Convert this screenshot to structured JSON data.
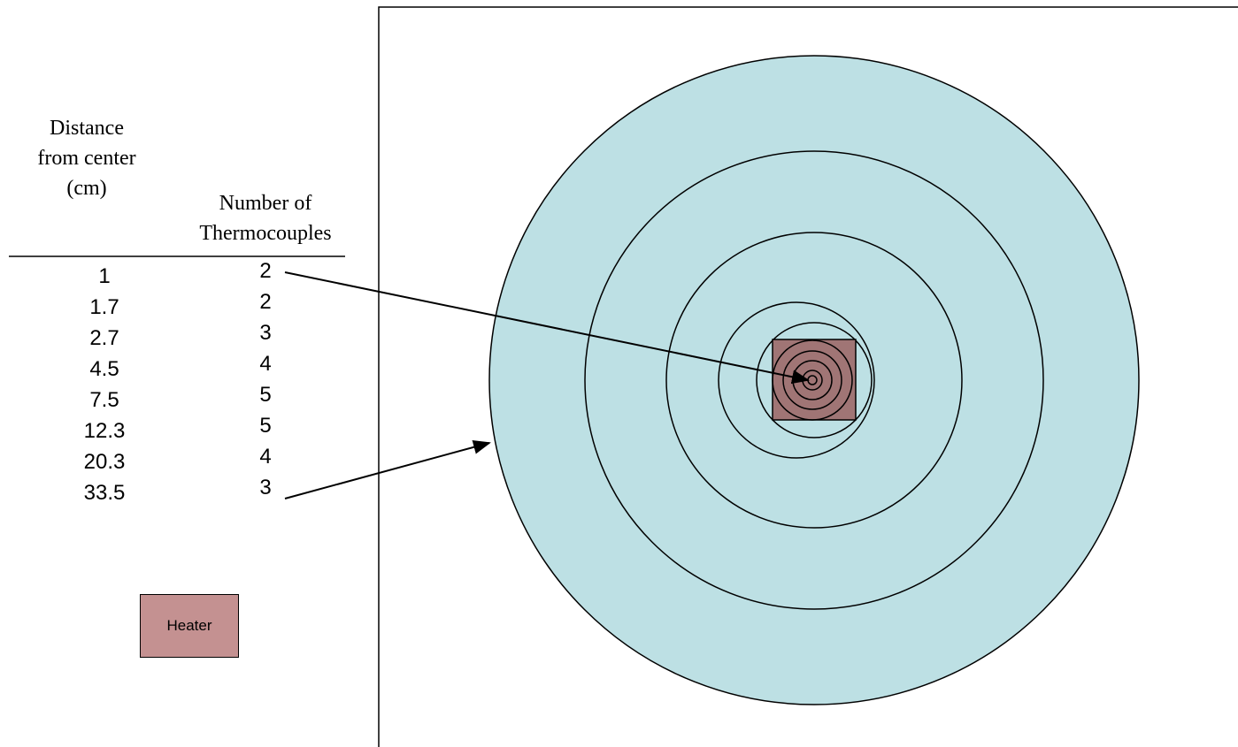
{
  "table": {
    "headers": [
      "Distance from center (cm)",
      "Number of Thermocouples"
    ],
    "rows": [
      [
        1,
        2
      ],
      [
        1.7,
        2
      ],
      [
        2.7,
        3
      ],
      [
        4.5,
        4
      ],
      [
        7.5,
        5
      ],
      [
        12.3,
        5
      ],
      [
        20.3,
        4
      ],
      [
        33.5,
        3
      ]
    ]
  },
  "legend": {
    "heater": "Heater"
  }
}
